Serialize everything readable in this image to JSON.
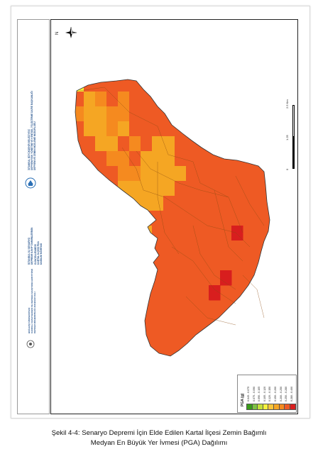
{
  "info_block": {
    "lines_group1": [
      "İSTANBUL BÜYÜKŞEHİR BELEDİYESİ",
      "DEPREM RİSK YÖNETİMİ VE KENTSEL İYİLEŞTİRME DAİRE BAŞKANLIĞI",
      "DEPREM VE ZEMİN İNCELEME MÜDÜRLÜĞÜ"
    ],
    "lines_group2": [
      "İSTANBUL İLİ SENARYO",
      "DEPREMİ KAYIP TAHMİNLERİNİN",
      "GÜNCELLENMESİ",
      "KARTAL İLÇESİ PGA",
      "DAĞILIM HARİTASI"
    ],
    "lines_group3": [
      "BOĞAZİÇİ ÜNİVERSİTESİ",
      "KANDİLLİ RASATHANESİ VE DEPREM ARAŞTIRMA ENSTİTÜSÜ",
      "DEPREM MÜHENDİSLİĞİ ANABİLİM DALI"
    ]
  },
  "north_label": "N",
  "scale": {
    "labels": [
      "0",
      "1.25",
      "2.5 Km"
    ]
  },
  "legend": {
    "title": "PGA (g)",
    "classes": [
      {
        "range": "0.045 - 0.075",
        "color": "#3a9c1a"
      },
      {
        "range": "0.075 - 0.090",
        "color": "#7dc242"
      },
      {
        "range": "0.090 - 0.105",
        "color": "#c6e03a"
      },
      {
        "range": "0.105 - 0.120",
        "color": "#f6f23c"
      },
      {
        "range": "0.120 - 0.150",
        "color": "#f9c63a"
      },
      {
        "range": "0.150 - 0.200",
        "color": "#f5a623"
      },
      {
        "range": "0.200 - 0.250",
        "color": "#f58a1f"
      },
      {
        "range": "0.250 - 0.280",
        "color": "#ee5a24"
      },
      {
        "range": "0.280 - 0.400",
        "color": "#d81e1e"
      }
    ]
  },
  "map_colors": {
    "orange_light": "#f5a623",
    "orange_dark": "#f58a1f",
    "red_orange": "#ee5a24",
    "red": "#d81e1e",
    "yellow": "#f6f23c"
  },
  "caption_line1": "Şekil 4-4: Senaryo Depremi İçin Elde Edilen Kartal İlçesi Zemin Bağımlı",
  "caption_line2": "Medyan En Büyük Yer İvmesi (PGA) Dağılımı"
}
